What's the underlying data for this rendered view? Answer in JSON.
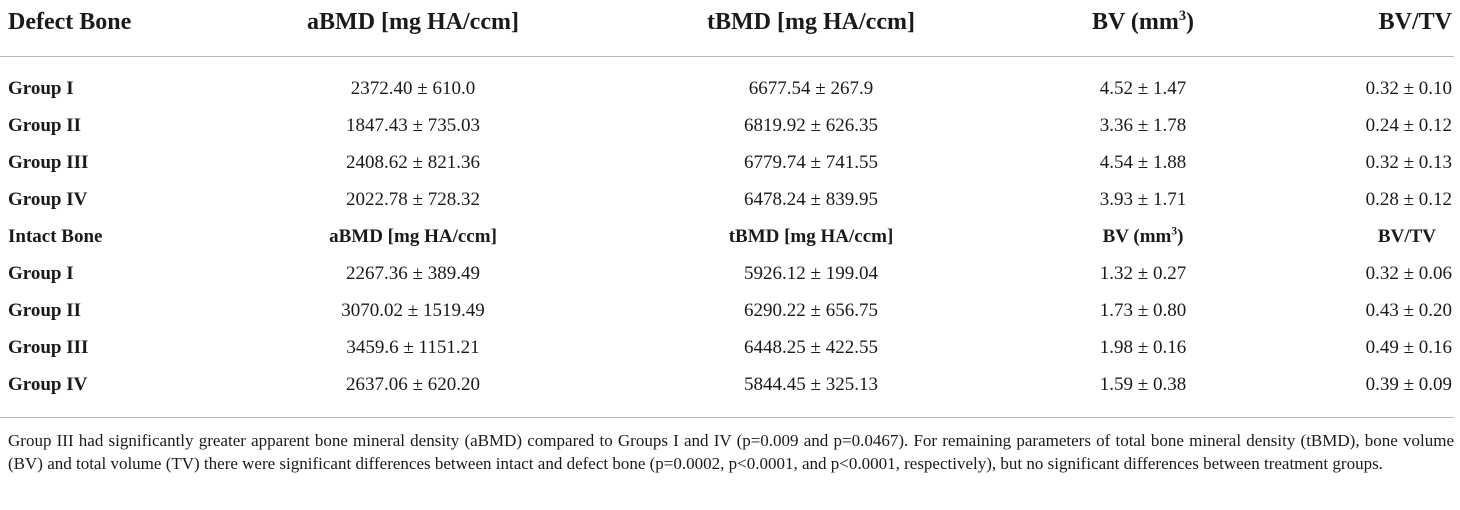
{
  "header": {
    "label": "Defect Bone",
    "abmd": "aBMD [mg HA/ccm]",
    "tbmd": "tBMD [mg HA/ccm]",
    "bv_base": "BV (mm",
    "bv_sup": "3",
    "bv_end": ")",
    "bvtv": "BV/TV"
  },
  "defect_rows": [
    {
      "group": "Group I",
      "abmd": "2372.40 ± 610.0",
      "tbmd": "6677.54 ± 267.9",
      "bv": "4.52 ± 1.47",
      "bvtv": "0.32 ± 0.10"
    },
    {
      "group": "Group II",
      "abmd": "1847.43 ± 735.03",
      "tbmd": "6819.92 ± 626.35",
      "bv": "3.36 ± 1.78",
      "bvtv": "0.24 ± 0.12"
    },
    {
      "group": "Group III",
      "abmd": "2408.62 ± 821.36",
      "tbmd": "6779.74 ± 741.55",
      "bv": "4.54 ± 1.88",
      "bvtv": "0.32 ± 0.13"
    },
    {
      "group": "Group IV",
      "abmd": "2022.78 ± 728.32",
      "tbmd": "6478.24 ± 839.95",
      "bv": "3.93 ± 1.71",
      "bvtv": "0.28 ± 0.12"
    }
  ],
  "intact_header": {
    "label": "Intact Bone",
    "abmd": "aBMD [mg HA/ccm]",
    "tbmd": "tBMD [mg HA/ccm]",
    "bv_base": "BV (mm",
    "bv_sup": "3",
    "bv_end": ")",
    "bvtv": "BV/TV"
  },
  "intact_rows": [
    {
      "group": "Group I",
      "abmd": "2267.36 ± 389.49",
      "tbmd": "5926.12 ± 199.04",
      "bv": "1.32 ± 0.27",
      "bvtv": "0.32 ± 0.06"
    },
    {
      "group": "Group II",
      "abmd": "3070.02 ± 1519.49",
      "tbmd": "6290.22 ± 656.75",
      "bv": "1.73 ± 0.80",
      "bvtv": "0.43 ± 0.20"
    },
    {
      "group": "Group III",
      "abmd": "3459.6 ± 1151.21",
      "tbmd": "6448.25 ± 422.55",
      "bv": "1.98 ± 0.16",
      "bvtv": "0.49 ± 0.16"
    },
    {
      "group": "Group IV",
      "abmd": "2637.06 ± 620.20",
      "tbmd": "5844.45 ± 325.13",
      "bv": "1.59 ± 0.38",
      "bvtv": "0.39 ± 0.09"
    }
  ],
  "footnote": "Group III had significantly greater apparent bone mineral density (aBMD) compared to Groups I and IV (p=0.009 and p=0.0467). For remaining parameters of total bone mineral density (tBMD), bone volume (BV) and total volume (TV) there were significant differences between intact and defect bone (p=0.0002, p<0.0001, and p<0.0001, respectively), but no significant differences between treatment groups."
}
